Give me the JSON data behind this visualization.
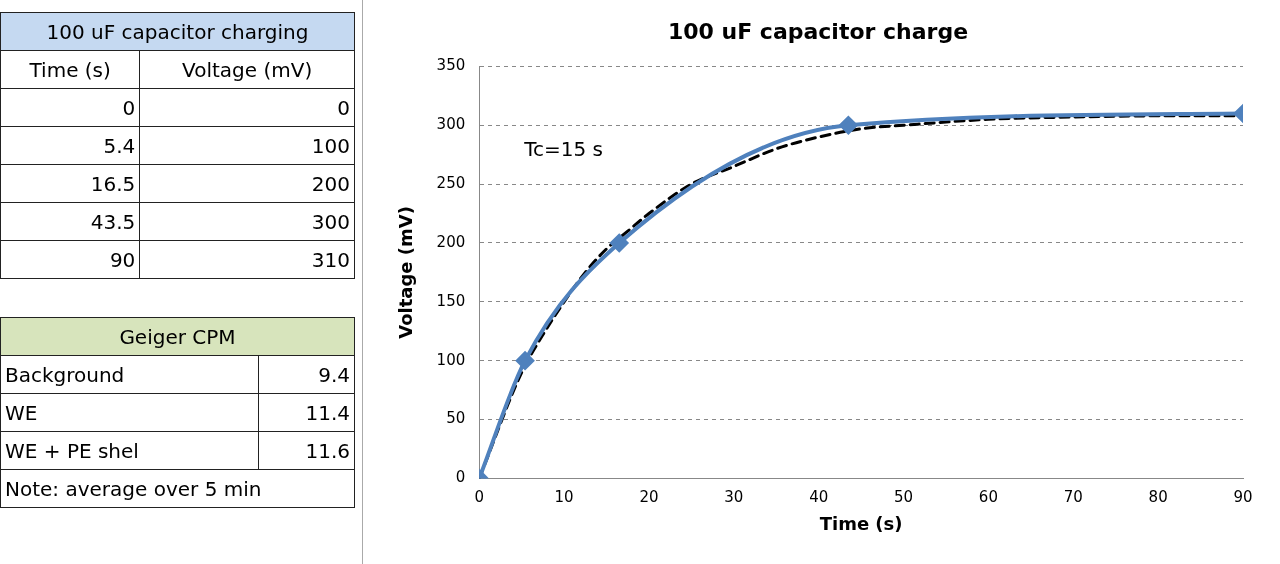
{
  "chart_data": [
    {
      "type": "line",
      "title": "100 uF capacitor charge",
      "xlabel": "Time (s)",
      "ylabel": "Voltage (mV)",
      "xlim": [
        0,
        90
      ],
      "xticks": [
        0,
        10,
        20,
        30,
        40,
        50,
        60,
        70,
        80,
        90
      ],
      "ylim": [
        0,
        350
      ],
      "yticks": [
        0,
        50,
        100,
        150,
        200,
        250,
        300,
        350
      ],
      "grid": "y",
      "legend": false,
      "annotations": [
        "100 uF capacitor charging",
        "Time (s)",
        "Voltage (mV)",
        "0",
        "0",
        "5.4",
        "100",
        "16.5",
        "200",
        "43.5",
        "300",
        "90",
        "310",
        "Tc=15 s"
      ],
      "series": [
        {
          "color": "#4f81bd",
          "marker": "diamond",
          "line_style": "solid",
          "x": [
            0,
            5.4,
            16.5,
            43.5,
            90
          ],
          "values": [
            0,
            100,
            200,
            300,
            310
          ]
        },
        {
          "color": "#000000",
          "marker": "none",
          "line_style": "dashed",
          "x": [
            0,
            5,
            7.5,
            10,
            12.5,
            15,
            17.5,
            20,
            25,
            30,
            35,
            40,
            45,
            50,
            60,
            70,
            80,
            90
          ],
          "values": [
            0,
            90,
            122,
            150,
            175,
            195,
            210,
            225,
            250,
            265,
            280,
            290,
            297,
            300,
            305,
            307,
            308,
            308
          ]
        }
      ]
    },
    {
      "type": "other",
      "title": "Geiger CPM",
      "annotations": [
        "Background",
        "9.4",
        "WE",
        "11.4",
        "WE + PE shel",
        "11.6",
        "Note: average over 5 min"
      ]
    }
  ]
}
